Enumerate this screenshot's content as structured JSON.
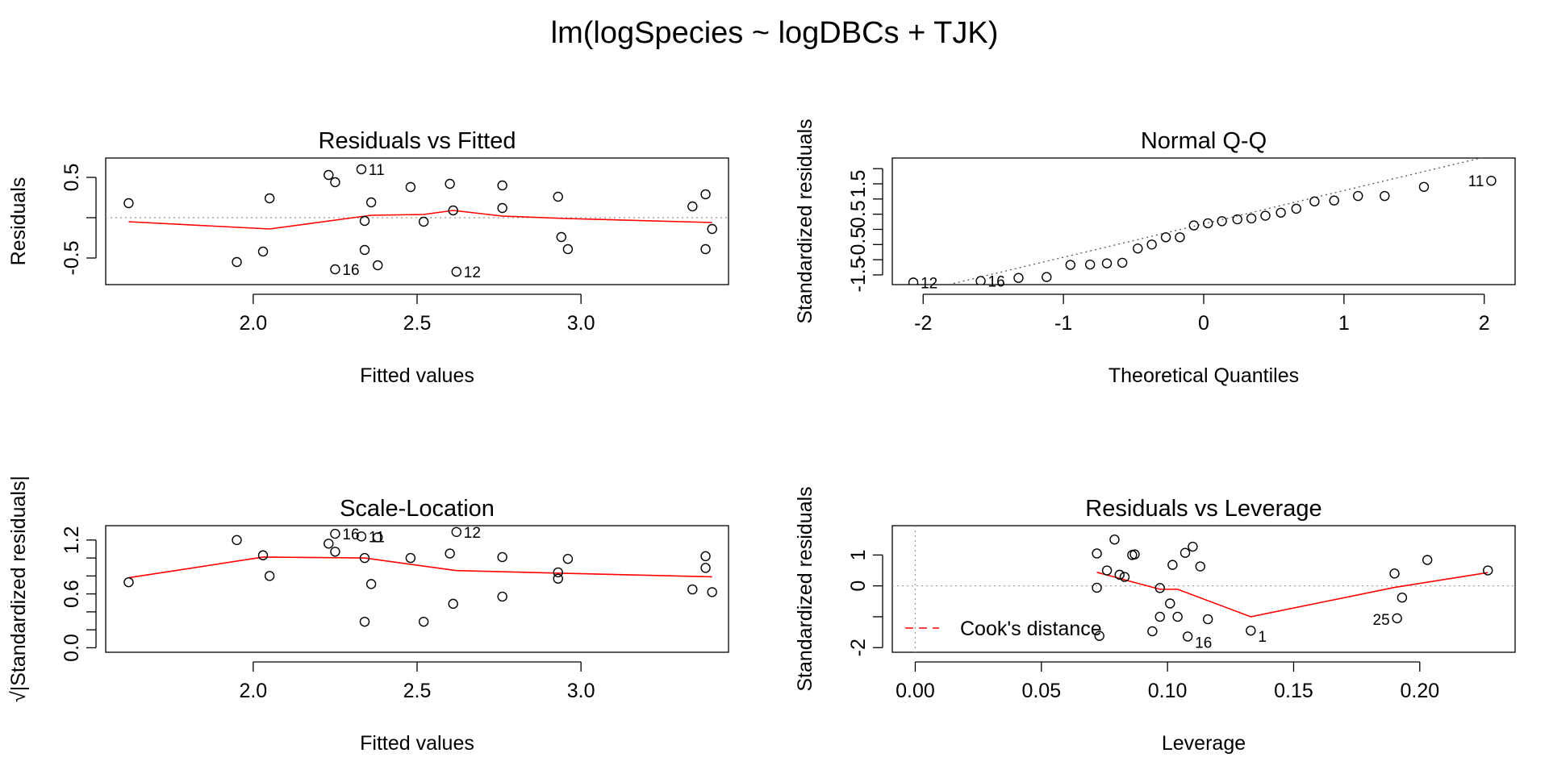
{
  "page_title": "lm(logSpecies ~ logDBCs + TJK)",
  "colors": {
    "smooth": "#ff0000",
    "reference": "#555555",
    "points": "#000000",
    "grid_ref": "#999999"
  },
  "chart_data": [
    {
      "type": "scatter",
      "id": "rvf",
      "title": "Residuals vs Fitted",
      "xlabel": "Fitted values",
      "ylabel": "Residuals",
      "xlim": [
        1.55,
        3.45
      ],
      "ylim": [
        -0.83,
        0.74
      ],
      "xticks": [
        2.0,
        2.5,
        3.0
      ],
      "xtick_labels": [
        "2.0",
        "2.5",
        "3.0"
      ],
      "yticks": [
        -0.5,
        0.5
      ],
      "ytick_labels": [
        "-0.5",
        "0.5"
      ],
      "hline": {
        "y": 0,
        "style": "dotted"
      },
      "points": [
        {
          "x": 1.62,
          "y": 0.18
        },
        {
          "x": 1.95,
          "y": -0.55
        },
        {
          "x": 2.03,
          "y": -0.42
        },
        {
          "x": 2.05,
          "y": 0.24
        },
        {
          "x": 2.23,
          "y": 0.53
        },
        {
          "x": 2.25,
          "y": 0.44
        },
        {
          "x": 2.25,
          "y": -0.64,
          "label": "16"
        },
        {
          "x": 2.33,
          "y": 0.6,
          "label": "11"
        },
        {
          "x": 2.34,
          "y": -0.04
        },
        {
          "x": 2.34,
          "y": -0.4
        },
        {
          "x": 2.36,
          "y": 0.19
        },
        {
          "x": 2.38,
          "y": -0.59
        },
        {
          "x": 2.48,
          "y": 0.38
        },
        {
          "x": 2.52,
          "y": -0.05
        },
        {
          "x": 2.6,
          "y": 0.42
        },
        {
          "x": 2.61,
          "y": 0.09
        },
        {
          "x": 2.62,
          "y": -0.67,
          "label": "12"
        },
        {
          "x": 2.76,
          "y": 0.4
        },
        {
          "x": 2.76,
          "y": 0.12
        },
        {
          "x": 2.93,
          "y": 0.26
        },
        {
          "x": 2.94,
          "y": -0.24
        },
        {
          "x": 2.96,
          "y": -0.39
        },
        {
          "x": 3.34,
          "y": 0.14
        },
        {
          "x": 3.38,
          "y": 0.29
        },
        {
          "x": 3.4,
          "y": -0.14
        },
        {
          "x": 3.38,
          "y": -0.39
        }
      ],
      "smooth": [
        [
          1.62,
          -0.05
        ],
        [
          2.05,
          -0.14
        ],
        [
          2.36,
          0.03
        ],
        [
          2.52,
          0.04
        ],
        [
          2.61,
          0.09
        ],
        [
          2.76,
          0.02
        ],
        [
          2.95,
          -0.01
        ],
        [
          3.4,
          -0.06
        ]
      ],
      "point_labels": [
        "16",
        "11",
        "12"
      ]
    },
    {
      "type": "scatter",
      "id": "qq",
      "title": "Normal Q-Q",
      "xlabel": "Theoretical Quantiles",
      "ylabel": "Standardized residuals",
      "xlim": [
        -2.22,
        2.22
      ],
      "ylim": [
        -1.82,
        2.35
      ],
      "xticks": [
        -2,
        -1,
        0,
        1,
        2
      ],
      "xtick_labels": [
        "-2",
        "-1",
        "0",
        "1",
        "2"
      ],
      "yticks": [
        -1.5,
        -0.5,
        0.5,
        1.5
      ],
      "ytick_labels": [
        "-1.5",
        "-0.5",
        "0.5",
        "1.5"
      ],
      "reference_line": [
        [
          -2.22,
          -2.26
        ],
        [
          2.22,
          2.62
        ]
      ],
      "points": [
        {
          "x": -2.07,
          "y": -1.75,
          "label": "12"
        },
        {
          "x": -1.59,
          "y": -1.7,
          "label": "16"
        },
        {
          "x": -1.32,
          "y": -1.6
        },
        {
          "x": -1.12,
          "y": -1.57
        },
        {
          "x": -0.95,
          "y": -1.17
        },
        {
          "x": -0.81,
          "y": -1.16
        },
        {
          "x": -0.69,
          "y": -1.12
        },
        {
          "x": -0.58,
          "y": -1.1
        },
        {
          "x": -0.47,
          "y": -0.63
        },
        {
          "x": -0.37,
          "y": -0.5
        },
        {
          "x": -0.27,
          "y": -0.26
        },
        {
          "x": -0.17,
          "y": -0.26
        },
        {
          "x": -0.07,
          "y": 0.13
        },
        {
          "x": 0.03,
          "y": 0.2
        },
        {
          "x": 0.13,
          "y": 0.27
        },
        {
          "x": 0.24,
          "y": 0.33
        },
        {
          "x": 0.34,
          "y": 0.36
        },
        {
          "x": 0.44,
          "y": 0.45
        },
        {
          "x": 0.55,
          "y": 0.55
        },
        {
          "x": 0.66,
          "y": 0.68
        },
        {
          "x": 0.79,
          "y": 0.92
        },
        {
          "x": 0.93,
          "y": 0.95
        },
        {
          "x": 1.1,
          "y": 1.1
        },
        {
          "x": 1.29,
          "y": 1.1
        },
        {
          "x": 1.57,
          "y": 1.4
        },
        {
          "x": 2.05,
          "y": 1.6,
          "label": "11"
        }
      ],
      "point_labels": [
        "12",
        "16",
        "11"
      ]
    },
    {
      "type": "scatter",
      "id": "sl",
      "title": "Scale-Location",
      "xlabel": "Fitted values",
      "ylabel": "√|Standardized residuals|",
      "xlim": [
        1.55,
        3.45
      ],
      "ylim": [
        -0.05,
        1.36
      ],
      "xticks": [
        2.0,
        2.5,
        3.0
      ],
      "xtick_labels": [
        "2.0",
        "2.5",
        "3.0"
      ],
      "yticks": [
        0.0,
        0.6,
        1.2
      ],
      "ytick_labels": [
        "0.0",
        "0.6",
        "1.2"
      ],
      "points": [
        {
          "x": 1.62,
          "y": 0.73
        },
        {
          "x": 1.95,
          "y": 1.2
        },
        {
          "x": 2.03,
          "y": 1.03
        },
        {
          "x": 2.05,
          "y": 0.8
        },
        {
          "x": 2.23,
          "y": 1.16
        },
        {
          "x": 2.25,
          "y": 1.07
        },
        {
          "x": 2.25,
          "y": 1.27,
          "label": "16"
        },
        {
          "x": 2.33,
          "y": 1.24,
          "label": "11"
        },
        {
          "x": 2.34,
          "y": 1.0
        },
        {
          "x": 2.34,
          "y": 0.29
        },
        {
          "x": 2.36,
          "y": 0.71
        },
        {
          "x": 2.38,
          "y": 1.23
        },
        {
          "x": 2.48,
          "y": 1.0
        },
        {
          "x": 2.52,
          "y": 0.29
        },
        {
          "x": 2.6,
          "y": 1.05
        },
        {
          "x": 2.61,
          "y": 0.49
        },
        {
          "x": 2.62,
          "y": 1.29,
          "label": "12"
        },
        {
          "x": 2.76,
          "y": 1.01
        },
        {
          "x": 2.76,
          "y": 0.57
        },
        {
          "x": 2.93,
          "y": 0.84
        },
        {
          "x": 2.93,
          "y": 0.77
        },
        {
          "x": 2.96,
          "y": 0.99
        },
        {
          "x": 3.34,
          "y": 0.65
        },
        {
          "x": 3.38,
          "y": 0.89
        },
        {
          "x": 3.38,
          "y": 1.02
        },
        {
          "x": 3.4,
          "y": 0.62
        }
      ],
      "smooth": [
        [
          1.62,
          0.78
        ],
        [
          2.03,
          1.01
        ],
        [
          2.34,
          1.0
        ],
        [
          2.62,
          0.86
        ],
        [
          2.95,
          0.83
        ],
        [
          3.4,
          0.79
        ]
      ],
      "point_labels": [
        "16",
        "11",
        "12"
      ]
    },
    {
      "type": "scatter",
      "id": "rvl",
      "title": "Residuals vs Leverage",
      "xlabel": "Leverage",
      "ylabel": "Standardized residuals",
      "xlim": [
        -0.0091,
        0.2378
      ],
      "ylim": [
        -2.15,
        1.95
      ],
      "xticks": [
        0.0,
        0.05,
        0.1,
        0.15,
        0.2
      ],
      "xtick_labels": [
        "0.00",
        "0.05",
        "0.10",
        "0.15",
        "0.20"
      ],
      "yticks": [
        -2,
        0,
        1
      ],
      "ytick_labels": [
        "-2",
        "0",
        "1"
      ],
      "hline": {
        "y": 0,
        "style": "dotted"
      },
      "vline": {
        "x": 0,
        "style": "dotted"
      },
      "legend": {
        "label": "Cook's distance",
        "position": "bottom-left",
        "style": "dashed"
      },
      "points": [
        {
          "x": 0.072,
          "y": -0.06
        },
        {
          "x": 0.072,
          "y": 1.05
        },
        {
          "x": 0.073,
          "y": -1.62
        },
        {
          "x": 0.076,
          "y": 0.5
        },
        {
          "x": 0.079,
          "y": 1.5
        },
        {
          "x": 0.081,
          "y": 0.36
        },
        {
          "x": 0.083,
          "y": 0.29
        },
        {
          "x": 0.086,
          "y": 1.0
        },
        {
          "x": 0.087,
          "y": 1.02
        },
        {
          "x": 0.094,
          "y": -1.47
        },
        {
          "x": 0.097,
          "y": -1.0
        },
        {
          "x": 0.097,
          "y": -0.07
        },
        {
          "x": 0.101,
          "y": -0.57
        },
        {
          "x": 0.102,
          "y": 0.68
        },
        {
          "x": 0.104,
          "y": -1.0
        },
        {
          "x": 0.107,
          "y": 1.07
        },
        {
          "x": 0.108,
          "y": -1.64,
          "label": "16"
        },
        {
          "x": 0.11,
          "y": 1.27
        },
        {
          "x": 0.113,
          "y": 0.63
        },
        {
          "x": 0.116,
          "y": -1.08
        },
        {
          "x": 0.133,
          "y": -1.45,
          "label": "1"
        },
        {
          "x": 0.19,
          "y": 0.4
        },
        {
          "x": 0.191,
          "y": -1.05,
          "label": "25"
        },
        {
          "x": 0.193,
          "y": -0.38
        },
        {
          "x": 0.203,
          "y": 0.84
        },
        {
          "x": 0.227,
          "y": 0.5
        }
      ],
      "smooth": [
        [
          0.072,
          0.44
        ],
        [
          0.097,
          -0.11
        ],
        [
          0.104,
          -0.11
        ],
        [
          0.133,
          -1.0
        ],
        [
          0.19,
          -0.05
        ],
        [
          0.227,
          0.43
        ]
      ],
      "point_labels": [
        "16",
        "1",
        "25"
      ]
    }
  ]
}
